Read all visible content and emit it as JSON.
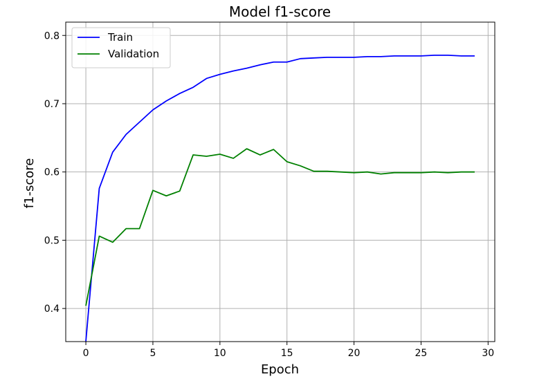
{
  "chart_data": {
    "type": "line",
    "title": "Model f1-score",
    "xlabel": "Epoch",
    "ylabel": "f1-score",
    "xlim": [
      -1.5,
      30.5
    ],
    "ylim": [
      0.3515,
      0.8195
    ],
    "xticks": [
      0,
      5,
      10,
      15,
      20,
      25,
      30
    ],
    "xtick_labels": [
      "0",
      "5",
      "10",
      "15",
      "20",
      "25",
      "30"
    ],
    "yticks": [
      0.4,
      0.5,
      0.6,
      0.7,
      0.8
    ],
    "ytick_labels": [
      "0.4",
      "0.5",
      "0.6",
      "0.7",
      "0.8"
    ],
    "grid": true,
    "legend_position": "top-left",
    "x": [
      0,
      1,
      2,
      3,
      4,
      5,
      6,
      7,
      8,
      9,
      10,
      11,
      12,
      13,
      14,
      15,
      16,
      17,
      18,
      19,
      20,
      21,
      22,
      23,
      24,
      25,
      26,
      27,
      28,
      29
    ],
    "series": [
      {
        "name": "Train",
        "color": "#0000ff",
        "values": [
          0.352,
          0.576,
          0.629,
          0.655,
          0.673,
          0.691,
          0.704,
          0.715,
          0.724,
          0.737,
          0.743,
          0.748,
          0.752,
          0.757,
          0.761,
          0.761,
          0.766,
          0.767,
          0.768,
          0.768,
          0.768,
          0.769,
          0.769,
          0.77,
          0.77,
          0.77,
          0.771,
          0.771,
          0.77,
          0.77
        ]
      },
      {
        "name": "Validation",
        "color": "#008000",
        "values": [
          0.404,
          0.506,
          0.497,
          0.517,
          0.517,
          0.573,
          0.565,
          0.572,
          0.625,
          0.623,
          0.626,
          0.62,
          0.634,
          0.625,
          0.633,
          0.615,
          0.609,
          0.601,
          0.601,
          0.6,
          0.599,
          0.6,
          0.597,
          0.599,
          0.599,
          0.599,
          0.6,
          0.599,
          0.6,
          0.6
        ]
      }
    ]
  }
}
